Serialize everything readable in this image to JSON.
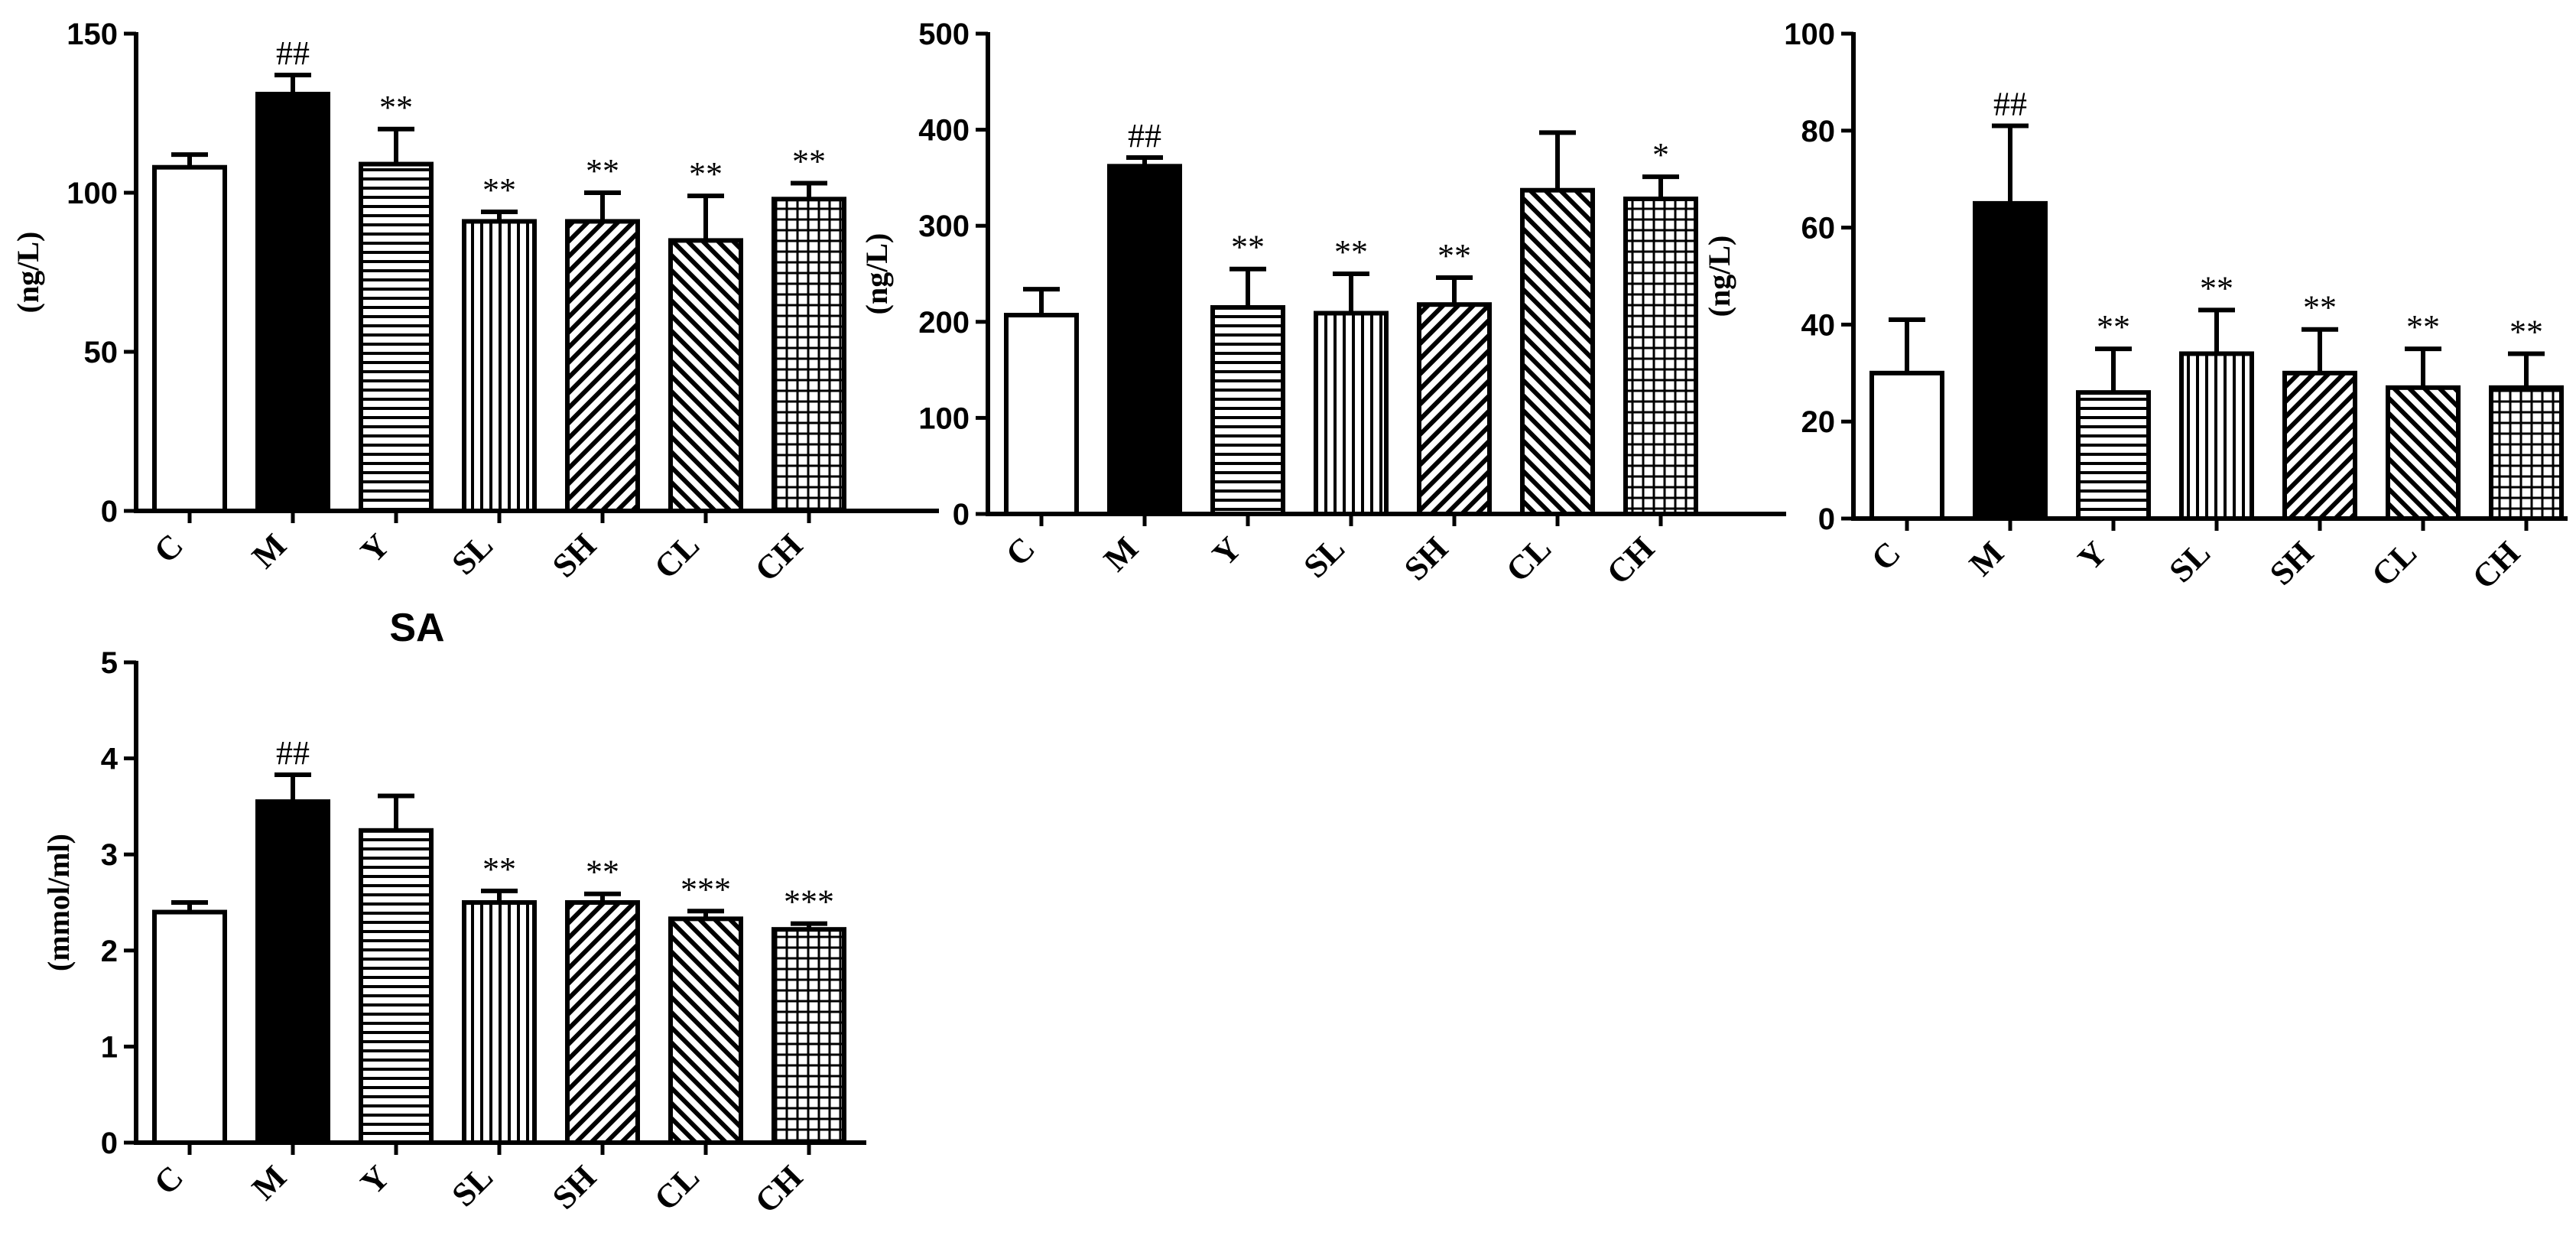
{
  "chart_data": [
    {
      "type": "bar",
      "title": "",
      "xlabel": "",
      "ylabel": "(ng/L)",
      "ylim": [
        0,
        150
      ],
      "yticks": [
        0,
        50,
        100,
        150
      ],
      "categories": [
        "C",
        "M",
        "Y",
        "SL",
        "SH",
        "CL",
        "CH"
      ],
      "values": [
        108,
        131,
        109,
        91,
        91,
        85,
        98
      ],
      "errors": [
        4,
        6,
        11,
        3,
        9,
        14,
        5
      ],
      "annotations": [
        "",
        "##",
        "**",
        "**",
        "**",
        "**",
        "**"
      ],
      "patterns": [
        "none",
        "solid",
        "hlines",
        "vlines",
        "diag-up",
        "diag-down",
        "grid"
      ]
    },
    {
      "type": "bar",
      "title": "",
      "xlabel": "",
      "ylabel": "(ng/L)",
      "ylim": [
        0,
        500
      ],
      "yticks": [
        0,
        100,
        200,
        300,
        400,
        500
      ],
      "categories": [
        "C",
        "M",
        "Y",
        "SL",
        "SH",
        "CL",
        "CH"
      ],
      "values": [
        207,
        362,
        215,
        209,
        218,
        337,
        328
      ],
      "errors": [
        27,
        9,
        40,
        41,
        28,
        60,
        23
      ],
      "annotations": [
        "",
        "##",
        "**",
        "**",
        "**",
        "",
        "*"
      ],
      "patterns": [
        "none",
        "solid",
        "hlines",
        "vlines",
        "diag-up",
        "diag-down",
        "grid"
      ]
    },
    {
      "type": "bar",
      "title": "",
      "xlabel": "",
      "ylabel": "(ng/L)",
      "ylim": [
        0,
        100
      ],
      "yticks": [
        0,
        20,
        40,
        60,
        80,
        100
      ],
      "categories": [
        "C",
        "M",
        "Y",
        "SL",
        "SH",
        "CL",
        "CH"
      ],
      "values": [
        30,
        65,
        26,
        34,
        30,
        27,
        27
      ],
      "errors": [
        11,
        16,
        9,
        9,
        9,
        8,
        7
      ],
      "annotations": [
        "",
        "##",
        "**",
        "**",
        "**",
        "**",
        "**"
      ],
      "patterns": [
        "none",
        "solid",
        "hlines",
        "vlines",
        "diag-up",
        "diag-down",
        "grid"
      ]
    },
    {
      "type": "bar",
      "title": "SA",
      "xlabel": "",
      "ylabel": "(mmol/ml)",
      "ylim": [
        0,
        5
      ],
      "yticks": [
        0,
        1,
        2,
        3,
        4,
        5
      ],
      "categories": [
        "C",
        "M",
        "Y",
        "SL",
        "SH",
        "CL",
        "CH"
      ],
      "values": [
        2.4,
        3.55,
        3.25,
        2.5,
        2.5,
        2.33,
        2.22
      ],
      "errors": [
        0.1,
        0.28,
        0.36,
        0.12,
        0.09,
        0.08,
        0.06
      ],
      "annotations": [
        "",
        "##",
        "",
        "**",
        "**",
        "***",
        "***"
      ],
      "patterns": [
        "none",
        "solid",
        "hlines",
        "vlines",
        "diag-up",
        "diag-down",
        "grid"
      ]
    }
  ]
}
